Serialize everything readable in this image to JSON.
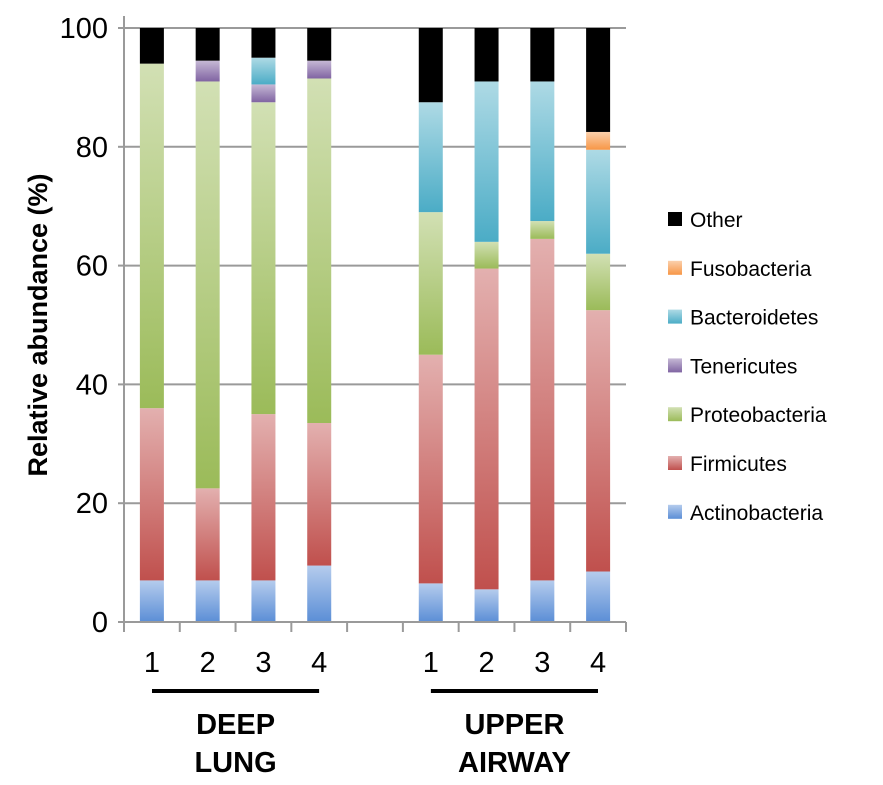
{
  "chart_data": {
    "type": "bar",
    "stacked": true,
    "ylabel": "Relative abundance (%)",
    "ylim": [
      0,
      100
    ],
    "yticks": [
      0,
      20,
      40,
      60,
      80,
      100
    ],
    "grid": true,
    "legend_position": "right",
    "categories": [
      "1",
      "2",
      "3",
      "4",
      "",
      "1",
      "2",
      "3",
      "4"
    ],
    "groups": [
      {
        "label_lines": [
          "DEEP",
          "LUNG"
        ],
        "categories": [
          0,
          1,
          2,
          3
        ]
      },
      {
        "label_lines": [
          "UPPER",
          "AIRWAY"
        ],
        "categories": [
          5,
          6,
          7,
          8
        ]
      }
    ],
    "series": [
      {
        "name": "Actinobacteria",
        "color": "#5b8ed6",
        "values": [
          7,
          7,
          7,
          9.5,
          0,
          6.5,
          5.5,
          7,
          8.5
        ]
      },
      {
        "name": "Firmicutes",
        "color": "#c0504d",
        "values": [
          29,
          15.5,
          28,
          24,
          0,
          38.5,
          54,
          57.5,
          44
        ]
      },
      {
        "name": "Proteobacteria",
        "color": "#9bbb59",
        "values": [
          58,
          68.5,
          52.5,
          58,
          0,
          24,
          4.5,
          3,
          9.5
        ]
      },
      {
        "name": "Tenericutes",
        "color": "#8064a2",
        "values": [
          0,
          3.5,
          3,
          3,
          0,
          0,
          0,
          0,
          0
        ]
      },
      {
        "name": "Bacteroidetes",
        "color": "#4bacc6",
        "values": [
          0,
          0,
          4.5,
          0,
          0,
          18.5,
          27,
          23.5,
          17.5
        ]
      },
      {
        "name": "Fusobacteria",
        "color": "#f79646",
        "values": [
          0,
          0,
          0,
          0,
          0,
          0,
          0,
          0,
          3
        ]
      },
      {
        "name": "Other",
        "color": "#000000",
        "values": [
          6,
          5.5,
          5,
          5.5,
          0,
          12.5,
          9,
          9,
          17.5
        ]
      }
    ]
  }
}
